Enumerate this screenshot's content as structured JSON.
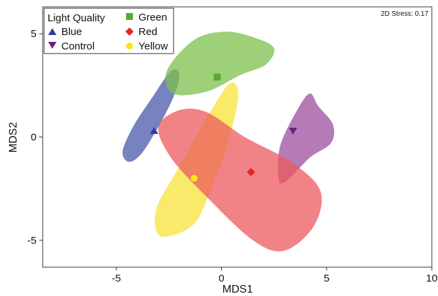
{
  "chart_data": {
    "type": "scatter",
    "title": "",
    "xlabel": "MDS1",
    "ylabel": "MDS2",
    "xlim": [
      -8.5,
      10.0
    ],
    "ylim": [
      -6.3,
      6.3
    ],
    "x_ticks": [
      -5,
      0,
      5,
      10
    ],
    "y_ticks": [
      -5,
      0,
      5
    ],
    "x_tick_labels": [
      "-5",
      "0",
      "5",
      "10"
    ],
    "y_tick_labels": [
      "-5",
      "0",
      "5"
    ],
    "grid": false,
    "legend_placement": "top-left",
    "annotation": "2D Stress: 0.17",
    "legend": {
      "title": "Light Quality",
      "entries": [
        "Blue",
        "Control",
        "Green",
        "Red",
        "Yellow"
      ]
    },
    "series": [
      {
        "name": "Blue",
        "color": "#2e3e9c",
        "fill_color": "#4a58a8",
        "marker": "triangle-up",
        "centroid": [
          -3.2,
          0.3
        ],
        "hull": [
          [
            -2.0,
            3.0
          ],
          [
            -2.3,
            1.9
          ],
          [
            -3.0,
            0.5
          ],
          [
            -3.8,
            -0.8
          ],
          [
            -4.4,
            -1.2
          ],
          [
            -4.7,
            -0.7
          ],
          [
            -4.2,
            0.5
          ],
          [
            -3.3,
            1.9
          ],
          [
            -2.4,
            3.2
          ]
        ]
      },
      {
        "name": "Control",
        "color": "#6e1f7f",
        "fill_color": "#9b4f9f",
        "marker": "triangle-down",
        "centroid": [
          3.4,
          0.3
        ],
        "hull": [
          [
            4.2,
            2.1
          ],
          [
            4.6,
            1.5
          ],
          [
            5.3,
            0.6
          ],
          [
            5.2,
            -0.3
          ],
          [
            4.2,
            -1.0
          ],
          [
            3.0,
            -2.2
          ],
          [
            2.7,
            -1.9
          ],
          [
            2.8,
            -0.4
          ],
          [
            3.6,
            1.3
          ]
        ]
      },
      {
        "name": "Green",
        "color": "#5aa832",
        "fill_color": "#7dbf4c",
        "marker": "square",
        "centroid": [
          -0.2,
          2.9
        ],
        "hull": [
          [
            0.2,
            5.1
          ],
          [
            1.6,
            4.8
          ],
          [
            2.5,
            4.3
          ],
          [
            2.1,
            3.5
          ],
          [
            0.9,
            3.0
          ],
          [
            -0.7,
            2.2
          ],
          [
            -2.3,
            2.1
          ],
          [
            -2.6,
            3.2
          ],
          [
            -1.3,
            4.7
          ]
        ]
      },
      {
        "name": "Red",
        "color": "#e8232a",
        "fill_color": "#ec5a5e",
        "marker": "diamond",
        "centroid": [
          1.4,
          -1.7
        ],
        "hull": [
          [
            -2.0,
            1.3
          ],
          [
            -0.7,
            1.2
          ],
          [
            1.1,
            0.0
          ],
          [
            3.3,
            -1.2
          ],
          [
            4.7,
            -2.6
          ],
          [
            4.4,
            -4.3
          ],
          [
            3.0,
            -5.5
          ],
          [
            1.5,
            -5.0
          ],
          [
            -0.8,
            -2.8
          ],
          [
            -2.4,
            -1.0
          ],
          [
            -3.0,
            0.5
          ]
        ]
      },
      {
        "name": "Yellow",
        "color": "#f7e51e",
        "fill_color": "#f7e33a",
        "marker": "circle",
        "centroid": [
          -1.3,
          -2.0
        ],
        "hull": [
          [
            0.4,
            2.6
          ],
          [
            0.8,
            2.0
          ],
          [
            0.3,
            -0.3
          ],
          [
            -0.6,
            -2.8
          ],
          [
            -1.4,
            -4.3
          ],
          [
            -2.9,
            -4.8
          ],
          [
            -3.1,
            -3.5
          ],
          [
            -2.1,
            -1.6
          ],
          [
            -0.6,
            1.1
          ]
        ]
      }
    ]
  }
}
